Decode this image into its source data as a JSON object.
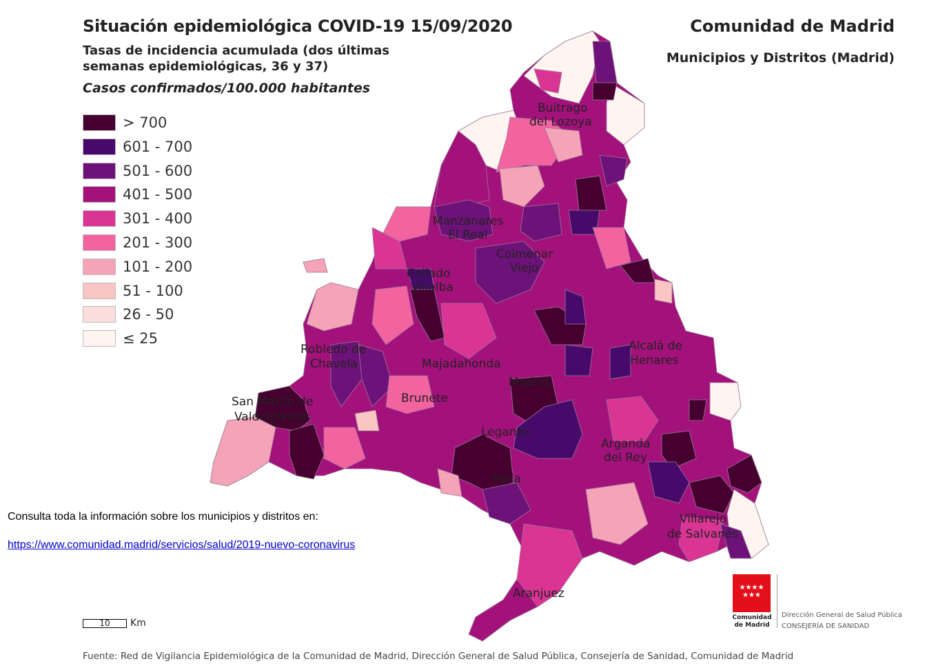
{
  "header": {
    "title": "Situación epidemiológica COVID-19  15/09/2020",
    "subtitle": "Tasas de incidencia acumulada (dos últimas semanas epidemiológicas, 36 y 37)",
    "units": "Casos confirmados/100.000 habitantes",
    "region": "Comunidad de Madrid",
    "scope": "Municipios y Distritos (Madrid)"
  },
  "legend": [
    {
      "label": "> 700",
      "color": "#45002f"
    },
    {
      "label": "601 - 700",
      "color": "#470a6b"
    },
    {
      "label": "501 - 600",
      "color": "#6d1278"
    },
    {
      "label": "401 - 500",
      "color": "#a3117b"
    },
    {
      "label": "301 - 400",
      "color": "#da3595"
    },
    {
      "label": "201 - 300",
      "color": "#f263a0"
    },
    {
      "label": "101 - 200",
      "color": "#f5a3b6"
    },
    {
      "label": "51 - 100",
      "color": "#fbc5c3"
    },
    {
      "label": "26 - 50",
      "color": "#fcdedc"
    },
    {
      "label": "≤ 25",
      "color": "#fff4ef"
    }
  ],
  "places": [
    "Buitrago",
    "del Lozoya",
    "Manzanares",
    "El Real",
    "Colmenar",
    "Viejo",
    "Collado",
    "Villalba",
    "Robledo de",
    "Chavela",
    "Majadahonda",
    "Madrid",
    "Alcalá de",
    "Henares",
    "San Martín de",
    "Valdeiglesias",
    "Brunete",
    "Leganés",
    "Arganda",
    "del Rey",
    "Parla",
    "Villarejo",
    "de Salvanés",
    "Aranjuez"
  ],
  "info": {
    "text": "Consulta toda la información sobre los municipios y distritos en:",
    "link": "https://www.comunidad.madrid/servicios/salud/2019-nuevo-coronavirus"
  },
  "scale": {
    "value": "10",
    "unit": "Km"
  },
  "logo": {
    "line1": "Comunidad",
    "line2": "de Madrid",
    "dept1": "Dirección General de Salud Pública",
    "dept2": "CONSEJERÍA DE SANIDAD"
  },
  "source": "Fuente: Red de Vigilancia Epidemiológica de la Comunidad de Madrid, Dirección General de Salud Pública, Consejería de Sanidad, Comunidad de Madrid"
}
